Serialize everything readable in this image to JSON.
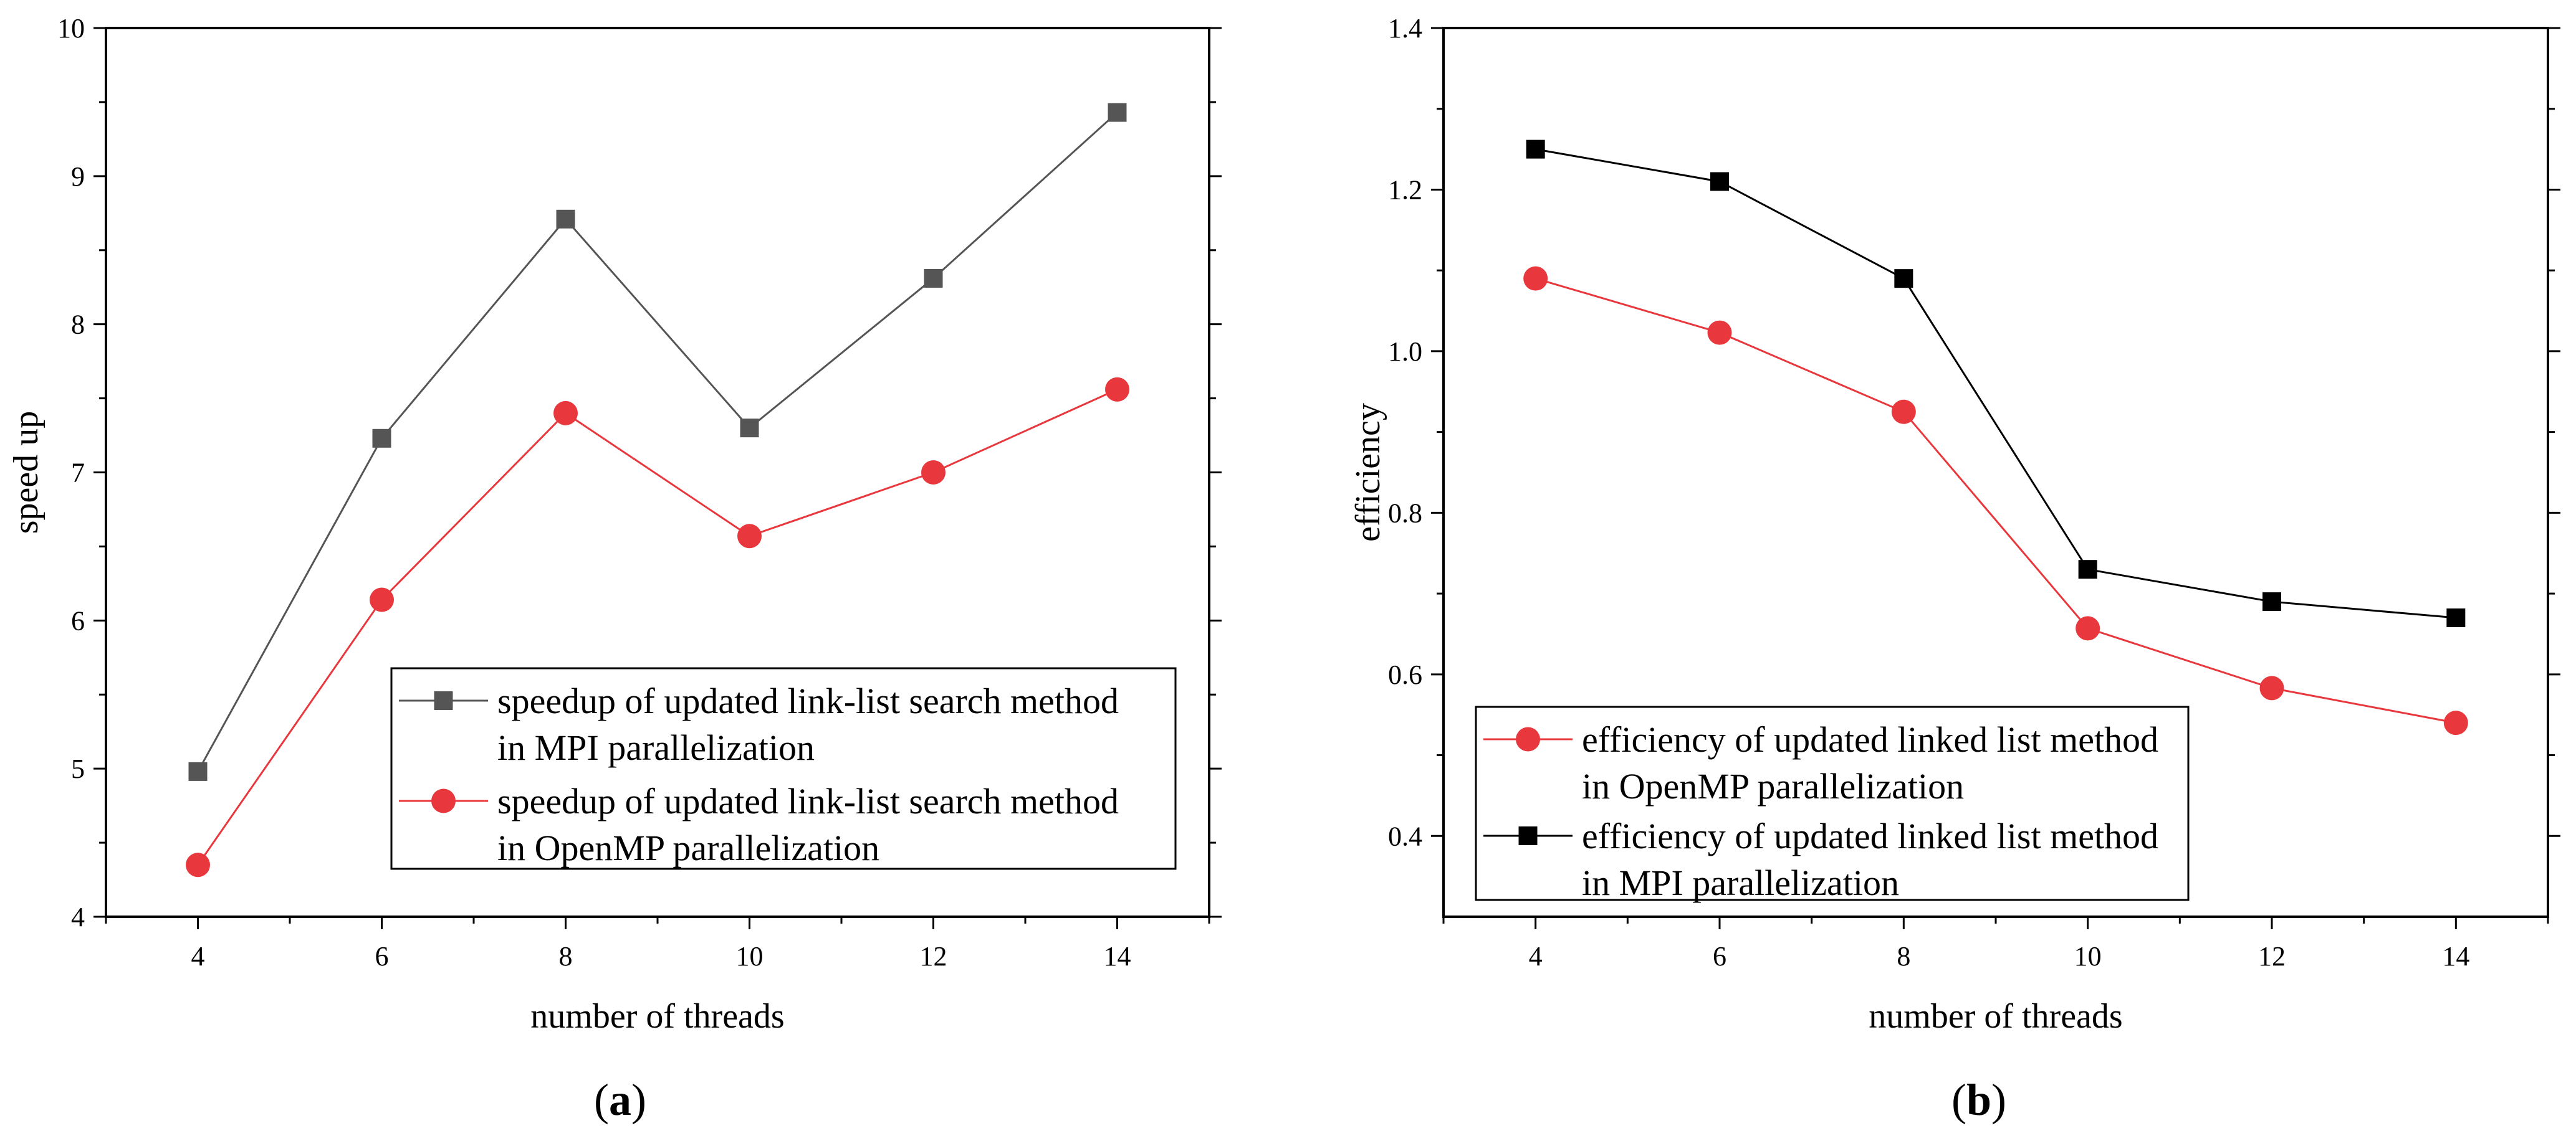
{
  "chart_data": [
    {
      "type": "line",
      "panel_label": "a",
      "xlabel": "number of threads",
      "ylabel": "speed up",
      "xlim": [
        3,
        15
      ],
      "ylim": [
        4,
        10
      ],
      "xticks": [
        4,
        6,
        8,
        10,
        12,
        14
      ],
      "yticks": [
        4,
        5,
        6,
        7,
        8,
        9,
        10
      ],
      "legend_position": "bottom-right",
      "series": [
        {
          "name": "speedup of updated link-list search method in MPI parallelization",
          "legend_lines": [
            "speedup of updated link-list search method",
            "in MPI parallelization"
          ],
          "marker": "square",
          "color": "#555555",
          "line_color": "#555555",
          "x": [
            4,
            6,
            8,
            10,
            12,
            14
          ],
          "values": [
            4.98,
            7.23,
            8.71,
            7.3,
            8.31,
            9.43
          ]
        },
        {
          "name": "speedup of updated link-list search method in OpenMP parallelization",
          "legend_lines": [
            "speedup of updated link-list search method",
            "in OpenMP parallelization"
          ],
          "marker": "circle",
          "color": "#e8383d",
          "line_color": "#e8383d",
          "x": [
            4,
            6,
            8,
            10,
            12,
            14
          ],
          "values": [
            4.35,
            6.14,
            7.4,
            6.57,
            7.0,
            7.56
          ]
        }
      ]
    },
    {
      "type": "line",
      "panel_label": "b",
      "xlabel": "number of threads",
      "ylabel": "efficiency",
      "xlim": [
        3,
        15
      ],
      "ylim": [
        0.3,
        1.4
      ],
      "xticks": [
        4,
        6,
        8,
        10,
        12,
        14
      ],
      "yticks": [
        0.4,
        0.6,
        0.8,
        1.0,
        1.2,
        1.4
      ],
      "legend_position": "bottom-left",
      "series": [
        {
          "name": "efficiency of updated linked list method in OpenMP parallelization",
          "legend_lines": [
            "efficiency of updated linked list method",
            "in OpenMP parallelization"
          ],
          "marker": "circle",
          "color": "#e8383d",
          "line_color": "#e8383d",
          "x": [
            4,
            6,
            8,
            10,
            12,
            14
          ],
          "values": [
            1.09,
            1.023,
            0.925,
            0.657,
            0.583,
            0.54
          ]
        },
        {
          "name": "efficiency of updated linked list method in MPI parallelization",
          "legend_lines": [
            "efficiency of updated linked list method",
            "in MPI parallelization"
          ],
          "marker": "square",
          "color": "#000000",
          "line_color": "#000000",
          "x": [
            4,
            6,
            8,
            10,
            12,
            14
          ],
          "values": [
            1.25,
            1.21,
            1.09,
            0.73,
            0.69,
            0.67
          ]
        }
      ]
    }
  ]
}
